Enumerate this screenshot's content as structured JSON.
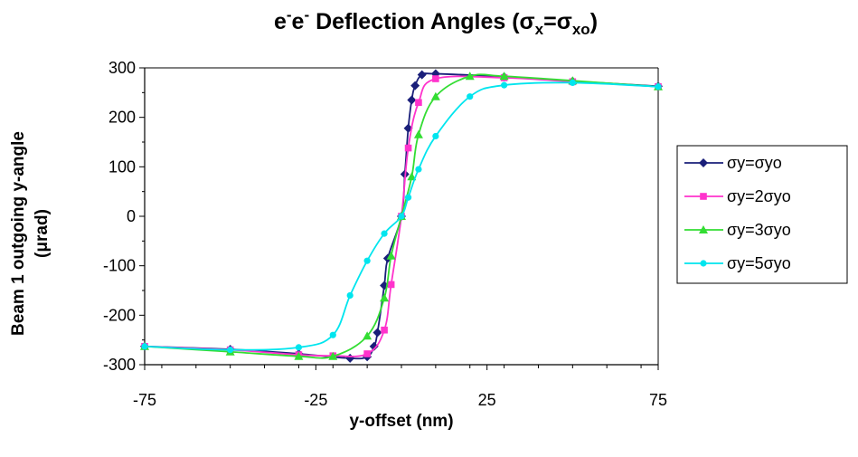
{
  "chart_data": {
    "type": "line",
    "title": {
      "p1": "e",
      "p1_sup": "-",
      "p2": "e",
      "p2_sup": "-",
      "p3": " Deflection Angles (σ",
      "p3_sub": "x",
      "p4": "=σ",
      "p4_sub": "xo",
      "p5": ")"
    },
    "xlabel": "y-offset (nm)",
    "ylabel_line1": "Beam 1 outgoing y-angle",
    "ylabel_line2": "(μrad)",
    "xlim": [
      -75,
      75
    ],
    "ylim": [
      -300,
      300
    ],
    "x_ticks": [
      -75,
      -25,
      25,
      75
    ],
    "y_ticks": [
      300,
      200,
      100,
      0,
      -100,
      -200,
      -300
    ],
    "legend_position": "right",
    "series": [
      {
        "name": "σy=σyo",
        "color": "#1a1f7a",
        "marker": "diamond",
        "points": [
          [
            -75,
            -263
          ],
          [
            -50,
            -269
          ],
          [
            -30,
            -278
          ],
          [
            -15,
            -287
          ],
          [
            -10,
            -284
          ],
          [
            -8,
            -263
          ],
          [
            -7,
            -235
          ],
          [
            -5,
            -140
          ],
          [
            -4,
            -85
          ],
          [
            0,
            0
          ],
          [
            1,
            85
          ],
          [
            2,
            178
          ],
          [
            3,
            235
          ],
          [
            4,
            264
          ],
          [
            6,
            286
          ],
          [
            10,
            288
          ],
          [
            30,
            282
          ],
          [
            50,
            273
          ],
          [
            75,
            263
          ]
        ]
      },
      {
        "name": "σy=2σyo",
        "color": "#ff33cc",
        "marker": "square",
        "points": [
          [
            -75,
            -263
          ],
          [
            -50,
            -270
          ],
          [
            -30,
            -280
          ],
          [
            -20,
            -282
          ],
          [
            -10,
            -278
          ],
          [
            -5,
            -230
          ],
          [
            -3,
            -138
          ],
          [
            0,
            0
          ],
          [
            2,
            138
          ],
          [
            5,
            230
          ],
          [
            10,
            278
          ],
          [
            30,
            280
          ],
          [
            50,
            272
          ],
          [
            75,
            262
          ]
        ]
      },
      {
        "name": "σy=3σyo",
        "color": "#33dd33",
        "marker": "triangle",
        "points": [
          [
            -75,
            -263
          ],
          [
            -50,
            -274
          ],
          [
            -30,
            -283
          ],
          [
            -20,
            -283
          ],
          [
            -10,
            -242
          ],
          [
            -5,
            -165
          ],
          [
            -3,
            -80
          ],
          [
            0,
            0
          ],
          [
            3,
            80
          ],
          [
            5,
            165
          ],
          [
            10,
            242
          ],
          [
            20,
            283
          ],
          [
            30,
            283
          ],
          [
            50,
            274
          ],
          [
            75,
            262
          ]
        ]
      },
      {
        "name": "σy=5σyo",
        "color": "#00e5ee",
        "marker": "circle",
        "points": [
          [
            -75,
            -263
          ],
          [
            -50,
            -270
          ],
          [
            -30,
            -265
          ],
          [
            -20,
            -240
          ],
          [
            -15,
            -160
          ],
          [
            -10,
            -90
          ],
          [
            -5,
            -35
          ],
          [
            0,
            0
          ],
          [
            2,
            38
          ],
          [
            5,
            95
          ],
          [
            10,
            162
          ],
          [
            20,
            242
          ],
          [
            30,
            265
          ],
          [
            50,
            270
          ],
          [
            75,
            262
          ]
        ]
      }
    ]
  }
}
